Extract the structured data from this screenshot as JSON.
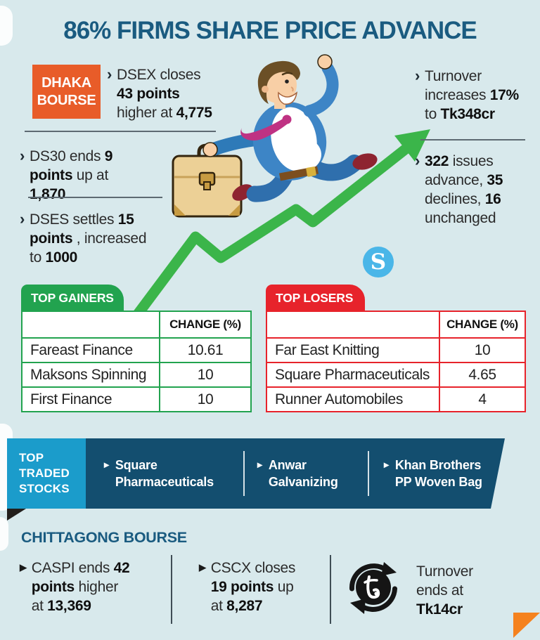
{
  "title": "86% FIRMS SHARE PRICE ADVANCE",
  "logo_letter": "S",
  "markers": {
    "chevron": "›",
    "triangle": "▶",
    "triangle_small": "▸"
  },
  "dhaka": {
    "badge_line1": "DHAKA",
    "badge_line2": "BOURSE",
    "bullets": {
      "dsex": [
        {
          "t": "DSEX closes ",
          "b": false
        },
        {
          "t": "43 points",
          "b": true
        },
        {
          "t": " higher at ",
          "b": false
        },
        {
          "t": "4,775",
          "b": true
        }
      ],
      "turnover": [
        {
          "t": "Turnover increases ",
          "b": false
        },
        {
          "t": "17%",
          "b": true
        },
        {
          "t": " to ",
          "b": false
        },
        {
          "t": "Tk348cr",
          "b": true
        }
      ],
      "ds30": [
        {
          "t": "DS30 ends ",
          "b": false
        },
        {
          "t": "9 points",
          "b": true
        },
        {
          "t": " up at ",
          "b": false
        },
        {
          "t": "1,870",
          "b": true
        }
      ],
      "dses": [
        {
          "t": "DSES settles ",
          "b": false
        },
        {
          "t": "15 points",
          "b": true
        },
        {
          "t": " , increased to ",
          "b": false
        },
        {
          "t": "1000",
          "b": true
        }
      ],
      "issues": [
        {
          "t": "322",
          "b": true
        },
        {
          "t": " issues advance, ",
          "b": false
        },
        {
          "t": "35",
          "b": true
        },
        {
          "t": " declines, ",
          "b": false
        },
        {
          "t": "16",
          "b": true
        },
        {
          "t": " unchanged",
          "b": false
        }
      ]
    }
  },
  "tables": {
    "gainers": {
      "label": "TOP GAINERS",
      "change_header": "CHANGE (%)",
      "rows": [
        {
          "name": "Fareast Finance",
          "change": "10.61"
        },
        {
          "name": "Maksons Spinning",
          "change": "10"
        },
        {
          "name": "First Finance",
          "change": "10"
        }
      ]
    },
    "losers": {
      "label": "TOP LOSERS",
      "change_header": "CHANGE (%)",
      "rows": [
        {
          "name": "Far East Knitting",
          "change": "10"
        },
        {
          "name": "Square Pharmaceuticals",
          "change": "4.65"
        },
        {
          "name": "Runner Automobiles",
          "change": "4"
        }
      ]
    }
  },
  "top_traded": {
    "label": "TOP TRADED STOCKS",
    "items": [
      "Square Pharmaceuticals",
      "Anwar Galvanizing",
      "Khan Brothers PP Woven Bag"
    ]
  },
  "chittagong": {
    "heading": "CHITTAGONG BOURSE",
    "bullets": {
      "caspi": [
        {
          "t": "CASPI ends ",
          "b": false
        },
        {
          "t": "42 points",
          "b": true
        },
        {
          "t": " higher ",
          "b": false
        },
        {
          "t": "at ",
          "b": false
        },
        {
          "t": "13,369",
          "b": true
        }
      ],
      "cscx": [
        {
          "t": "CSCX closes ",
          "b": false
        },
        {
          "t": "19 points",
          "b": true
        },
        {
          "t": " up at ",
          "b": false
        },
        {
          "t": "8,287",
          "b": true
        }
      ],
      "turnover": [
        {
          "t": "Turnover ends at ",
          "b": false
        },
        {
          "t": "Tk14cr",
          "b": true
        }
      ]
    }
  },
  "colors": {
    "background": "#d8e9ec",
    "heading_teal": "#1a5b80",
    "badge_orange": "#e85c29",
    "gain_green": "#22a34f",
    "arrow_green": "#3bb54a",
    "loss_red": "#e7232b",
    "banner_navy": "#134e6f",
    "banner_blue": "#1b9ccb",
    "logo_blue": "#4ab6e8",
    "corner_orange": "#f5821e"
  }
}
